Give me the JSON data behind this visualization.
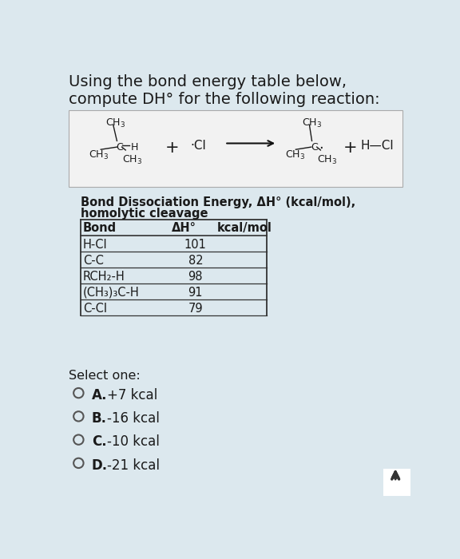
{
  "title_line1": "Using the bond energy table below,",
  "title_line2": "compute DH° for the following reaction:",
  "bg_color": "#dce8ee",
  "reaction_box_color": "#f5f5f5",
  "table_bg_color": "#dce8ee",
  "table_rows": [
    [
      "H-Cl",
      "101"
    ],
    [
      "C-C",
      "82"
    ],
    [
      "RCH₂-H",
      "98"
    ],
    [
      "(CH₃)₃C-H",
      "91"
    ],
    [
      "C-Cl",
      "79"
    ]
  ],
  "select_text": "Select one:",
  "options": [
    [
      "A.",
      "+7 kcal"
    ],
    [
      "B.",
      "-16 kcal"
    ],
    [
      "C.",
      "-10 kcal"
    ],
    [
      "D.",
      "-21 kcal"
    ]
  ],
  "text_color": "#1a1a1a",
  "arrow_color": "#111111",
  "table_line_color": "#333333",
  "bottom_arrow_color": "#333333"
}
